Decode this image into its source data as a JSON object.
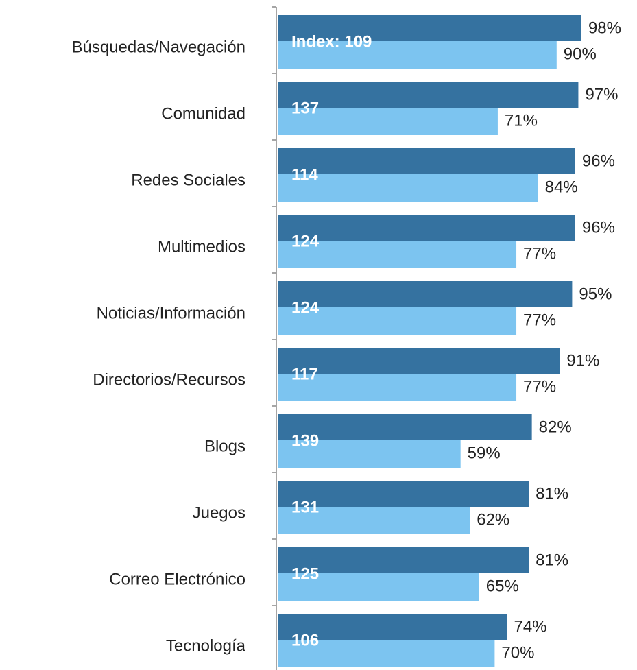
{
  "chart_data": {
    "type": "bar",
    "orientation": "horizontal",
    "categories": [
      "Búsquedas/Navegación",
      "Comunidad",
      "Redes Sociales",
      "Multimedios",
      "Noticias/Información",
      "Directorios/Recursos",
      "Blogs",
      "Juegos",
      "Correo Electrónico",
      "Tecnología"
    ],
    "series": [
      {
        "color": "#3572a0",
        "values": [
          98,
          97,
          96,
          96,
          95,
          91,
          82,
          81,
          81,
          74
        ],
        "value_labels": [
          "98%",
          "97%",
          "96%",
          "96%",
          "95%",
          "91%",
          "82%",
          "81%",
          "81%",
          "74%"
        ]
      },
      {
        "color": "#7cc4f0",
        "values": [
          90,
          71,
          84,
          77,
          77,
          77,
          59,
          62,
          65,
          70
        ],
        "value_labels": [
          "90%",
          "71%",
          "84%",
          "77%",
          "77%",
          "77%",
          "59%",
          "62%",
          "65%",
          "70%"
        ]
      }
    ],
    "index_labels": [
      "Index: 109",
      "137",
      "114",
      "124",
      "124",
      "117",
      "139",
      "131",
      "125",
      "106"
    ],
    "xlim": [
      0,
      100
    ]
  }
}
